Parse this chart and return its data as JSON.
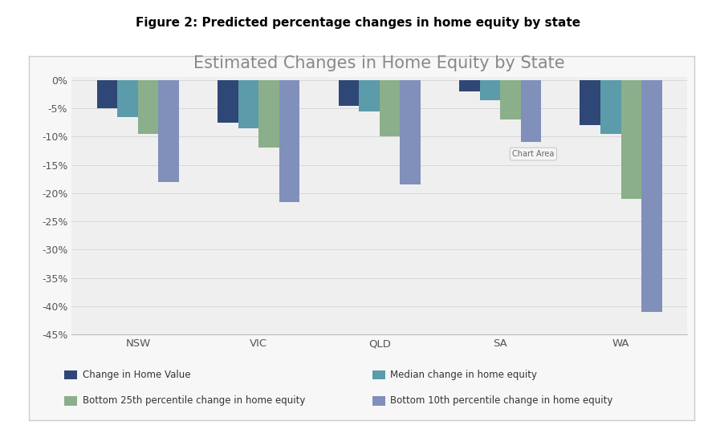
{
  "title": "Estimated Changes in Home Equity by State",
  "figure_title": "Figure 2: Predicted percentage changes in home equity by state",
  "states": [
    "NSW",
    "VIC",
    "QLD",
    "SA",
    "WA"
  ],
  "series": {
    "Change in Home Value": [
      -5.0,
      -7.5,
      -4.5,
      -2.0,
      -8.0
    ],
    "Median change in home equity": [
      -6.5,
      -8.5,
      -5.5,
      -3.5,
      -9.5
    ],
    "Bottom 25th percentile change in home equity": [
      -9.5,
      -12.0,
      -10.0,
      -7.0,
      -21.0
    ],
    "Bottom 10th percentile change in home equity": [
      -18.0,
      -21.5,
      -18.5,
      -11.0,
      -41.0
    ]
  },
  "colors": {
    "Change in Home Value": "#2E4776",
    "Median change in home equity": "#5B9BAA",
    "Bottom 25th percentile change in home equity": "#8AAF8A",
    "Bottom 10th percentile change in home equity": "#8090BB"
  },
  "ylim": [
    -45,
    0.5
  ],
  "yticks": [
    0,
    -5,
    -10,
    -15,
    -20,
    -25,
    -30,
    -35,
    -40,
    -45
  ],
  "outer_background": "#FFFFFF",
  "chart_background": "#EFEFEF",
  "panel_background": "#F7F7F7",
  "grid_color": "#D8D8D8",
  "title_fontsize": 15,
  "figure_title_fontsize": 11,
  "bar_width": 0.17,
  "legend_order": [
    "Change in Home Value",
    "Median change in home equity",
    "Bottom 25th percentile change in home equity",
    "Bottom 10th percentile change in home equity"
  ]
}
